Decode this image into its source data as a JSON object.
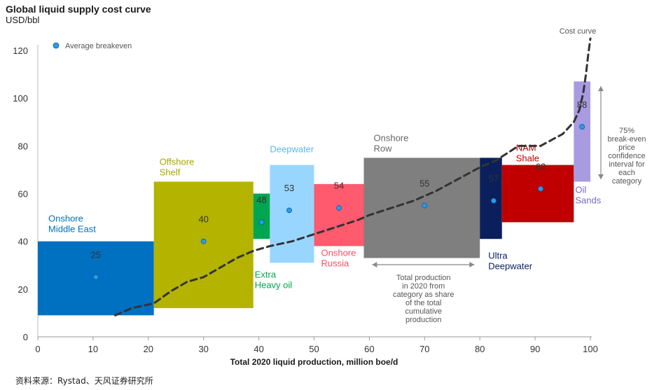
{
  "title": "Global liquid supply cost curve",
  "unit": "USD/bbl",
  "source": "资料来源：Rystad、天风证券研究所",
  "chart_data": {
    "type": "bar",
    "title": "Global liquid supply cost curve",
    "ylabel": "USD/bbl",
    "xlabel": "Total 2020 liquid production, million boe/d",
    "xlim": [
      0,
      100
    ],
    "ylim": [
      0,
      125
    ],
    "xticks": [
      0,
      10,
      20,
      30,
      40,
      50,
      60,
      70,
      80,
      90,
      100
    ],
    "yticks": [
      0,
      20,
      40,
      60,
      80,
      100,
      120
    ],
    "legend": {
      "marker_label": "Average breakeven",
      "position": "top-left"
    },
    "categories": [
      {
        "name": "Onshore Middle East",
        "lines": [
          "Onshore",
          "Middle East"
        ],
        "x0": 0,
        "x1": 21,
        "low": 9,
        "high": 40,
        "breakeven": 25,
        "color": "#0070c0",
        "label_color": "#0070c0"
      },
      {
        "name": "Offshore Shelf",
        "lines": [
          "Offshore",
          "Shelf"
        ],
        "x0": 21,
        "x1": 39,
        "low": 12,
        "high": 65,
        "breakeven": 40,
        "color": "#b3b300",
        "label_color": "#a6a600"
      },
      {
        "name": "Extra Heavy oil",
        "lines": [
          "Extra",
          "Heavy oil"
        ],
        "x0": 39,
        "x1": 42,
        "low": 41,
        "high": 60,
        "breakeven": 48,
        "color": "#00a650",
        "label_color": "#00a650"
      },
      {
        "name": "Deepwater",
        "lines": [
          "Deepwater"
        ],
        "x0": 42,
        "x1": 50,
        "low": 31,
        "high": 72,
        "breakeven": 53,
        "color": "#99d6ff",
        "label_color": "#5bb8f0"
      },
      {
        "name": "Onshore Russia",
        "lines": [
          "Onshore",
          "Russia"
        ],
        "x0": 50,
        "x1": 59,
        "low": 38,
        "high": 64,
        "breakeven": 54,
        "color": "#ff5a6e",
        "label_color": "#ff4d63"
      },
      {
        "name": "Onshore Row",
        "lines": [
          "Onshore",
          "Row"
        ],
        "x0": 59,
        "x1": 80,
        "low": 33,
        "high": 75,
        "breakeven": 55,
        "color": "#7f7f7f",
        "label_color": "#666666"
      },
      {
        "name": "Ultra Deepwater",
        "lines": [
          "Ultra",
          "Deepwater"
        ],
        "x0": 80,
        "x1": 84,
        "low": 41,
        "high": 75,
        "breakeven": 57,
        "color": "#0a1f5c",
        "label_color": "#0a1f5c"
      },
      {
        "name": "NAM Shale",
        "lines": [
          "NAM",
          "Shale"
        ],
        "x0": 84,
        "x1": 97,
        "low": 48,
        "high": 72,
        "breakeven": 62,
        "color": "#c00000",
        "label_color": "#c00000"
      },
      {
        "name": "Oil Sands",
        "lines": [
          "Oil",
          "Sands"
        ],
        "x0": 97,
        "x1": 100,
        "low": 65,
        "high": 107,
        "breakeven": 88,
        "color": "#a99be0",
        "label_color": "#7a68c8"
      }
    ],
    "cost_curve": {
      "label": "Cost curve",
      "points": [
        [
          14,
          9
        ],
        [
          17,
          12
        ],
        [
          21,
          14
        ],
        [
          24,
          19
        ],
        [
          27,
          23
        ],
        [
          30,
          25
        ],
        [
          33,
          29
        ],
        [
          36,
          33
        ],
        [
          39,
          36
        ],
        [
          42,
          38
        ],
        [
          46,
          40
        ],
        [
          50,
          43
        ],
        [
          54,
          46
        ],
        [
          58,
          49
        ],
        [
          60,
          51
        ],
        [
          64,
          54
        ],
        [
          68,
          57
        ],
        [
          72,
          61
        ],
        [
          76,
          66
        ],
        [
          80,
          71
        ],
        [
          83,
          74
        ],
        [
          85,
          77
        ],
        [
          87,
          80
        ],
        [
          91,
          80
        ],
        [
          95,
          85
        ],
        [
          97,
          90
        ],
        [
          98,
          95
        ],
        [
          98.7,
          102
        ],
        [
          99.2,
          110
        ],
        [
          99.6,
          118
        ],
        [
          100,
          125
        ]
      ]
    },
    "annotations": {
      "production_note": [
        "Total production",
        "in 2020 from",
        "category as share",
        "of the total",
        "cumulative",
        "production"
      ],
      "confidence_note": [
        "75%",
        "break-even",
        "price",
        "confidence",
        "interval for",
        "each",
        "category"
      ]
    }
  }
}
